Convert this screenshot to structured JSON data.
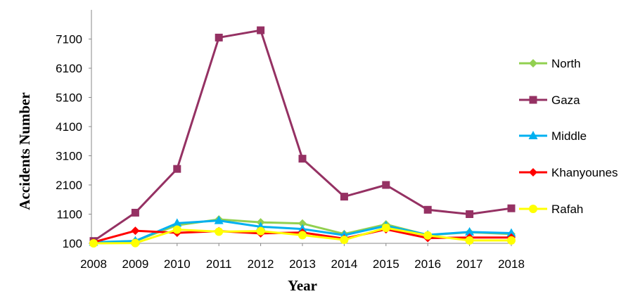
{
  "chart_data": {
    "type": "line",
    "xlabel": "Year",
    "ylabel": "Accidents Number",
    "x": [
      "2008",
      "2009",
      "2010",
      "2011",
      "2012",
      "2013",
      "2014",
      "2015",
      "2016",
      "2017",
      "2018"
    ],
    "ylim": [
      100,
      8100
    ],
    "yticks": [
      "100",
      "1100",
      "2100",
      "3100",
      "4100",
      "5100",
      "6100",
      "7100"
    ],
    "legend_position": "right",
    "grid": false,
    "series": [
      {
        "name": "North",
        "color": "#92D050",
        "marker": "diamond",
        "values": [
          120,
          180,
          720,
          920,
          820,
          780,
          420,
          750,
          380,
          480,
          420
        ]
      },
      {
        "name": "Gaza",
        "color": "#953163",
        "marker": "square",
        "values": [
          180,
          1150,
          2650,
          7150,
          7400,
          3000,
          1700,
          2100,
          1250,
          1100,
          1300
        ]
      },
      {
        "name": "Middle",
        "color": "#00B0F0",
        "marker": "triangle",
        "values": [
          140,
          180,
          790,
          880,
          670,
          590,
          380,
          700,
          390,
          490,
          450
        ]
      },
      {
        "name": "Khanyounes",
        "color": "#FF0000",
        "marker": "diamond",
        "values": [
          140,
          530,
          460,
          520,
          440,
          470,
          260,
          580,
          280,
          300,
          300
        ]
      },
      {
        "name": "Rafah",
        "color": "#FFFF00",
        "marker": "circle",
        "values": [
          100,
          110,
          570,
          500,
          520,
          380,
          220,
          630,
          370,
          200,
          200
        ]
      }
    ]
  }
}
